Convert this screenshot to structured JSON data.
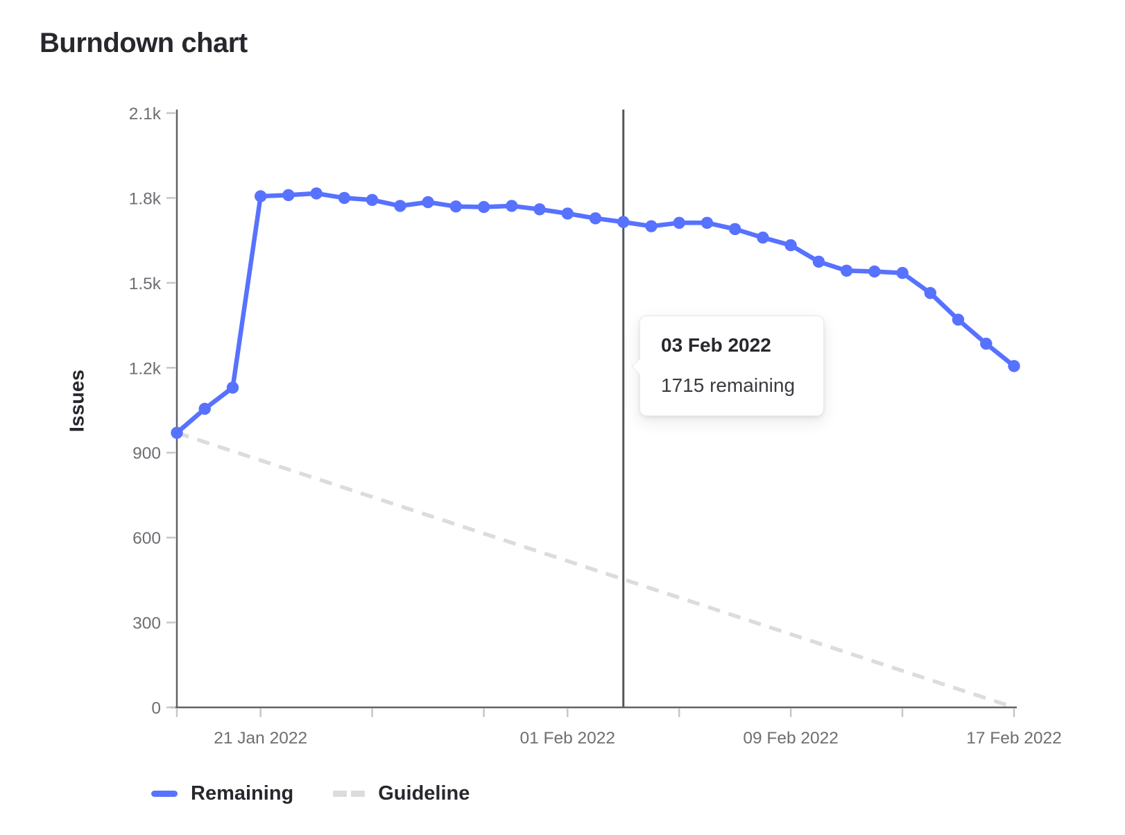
{
  "title": "Burndown chart",
  "tooltip": {
    "title": "03 Feb 2022",
    "body": "1715 remaining"
  },
  "legend": {
    "remaining_label": "Remaining",
    "guideline_label": "Guideline"
  },
  "chart_data": {
    "type": "line",
    "title": "Burndown chart",
    "xlabel": "",
    "ylabel": "Issues",
    "ylim": [
      0,
      2100
    ],
    "grid": false,
    "legend_position": "bottom-left",
    "x": [
      "18 Jan 2022",
      "19 Jan 2022",
      "20 Jan 2022",
      "21 Jan 2022",
      "22 Jan 2022",
      "23 Jan 2022",
      "24 Jan 2022",
      "25 Jan 2022",
      "26 Jan 2022",
      "27 Jan 2022",
      "28 Jan 2022",
      "29 Jan 2022",
      "30 Jan 2022",
      "31 Jan 2022",
      "01 Feb 2022",
      "02 Feb 2022",
      "03 Feb 2022",
      "04 Feb 2022",
      "05 Feb 2022",
      "06 Feb 2022",
      "07 Feb 2022",
      "08 Feb 2022",
      "09 Feb 2022",
      "10 Feb 2022",
      "11 Feb 2022",
      "12 Feb 2022",
      "13 Feb 2022",
      "14 Feb 2022",
      "15 Feb 2022",
      "16 Feb 2022",
      "17 Feb 2022"
    ],
    "y_ticks": [
      {
        "value": 0,
        "label": "0"
      },
      {
        "value": 300,
        "label": "300"
      },
      {
        "value": 600,
        "label": "600"
      },
      {
        "value": 900,
        "label": "900"
      },
      {
        "value": 1200,
        "label": "1.2k"
      },
      {
        "value": 1500,
        "label": "1.5k"
      },
      {
        "value": 1800,
        "label": "1.8k"
      },
      {
        "value": 2100,
        "label": "2.1k"
      }
    ],
    "x_axis_ticks_dates": [
      "18 Jan 2022",
      "21 Jan 2022",
      "25 Jan 2022",
      "29 Jan 2022",
      "01 Feb 2022",
      "05 Feb 2022",
      "09 Feb 2022",
      "13 Feb 2022",
      "17 Feb 2022"
    ],
    "x_axis_label_dates": [
      "21 Jan 2022",
      "01 Feb 2022",
      "09 Feb 2022",
      "17 Feb 2022"
    ],
    "series": [
      {
        "name": "Remaining",
        "style": "solid",
        "color": "#5772ff",
        "values": [
          970,
          1055,
          1130,
          1806,
          1810,
          1816,
          1800,
          1793,
          1772,
          1785,
          1770,
          1768,
          1772,
          1760,
          1745,
          1728,
          1715,
          1700,
          1712,
          1712,
          1690,
          1660,
          1633,
          1575,
          1543,
          1540,
          1535,
          1464,
          1370,
          1285,
          1206
        ]
      },
      {
        "name": "Guideline",
        "style": "dashed",
        "color": "#dcdcde",
        "start_value": 970,
        "end_value": 0
      }
    ],
    "hover": {
      "date": "03 Feb 2022",
      "remaining": 1715
    },
    "colors": {
      "remaining": "#5772ff",
      "guideline": "#dcdcde",
      "axis": "#616167",
      "tick": "#c6c6ca",
      "axis_label": "#6e6e73",
      "pointer": "#55555b",
      "text": "#28272d"
    }
  }
}
